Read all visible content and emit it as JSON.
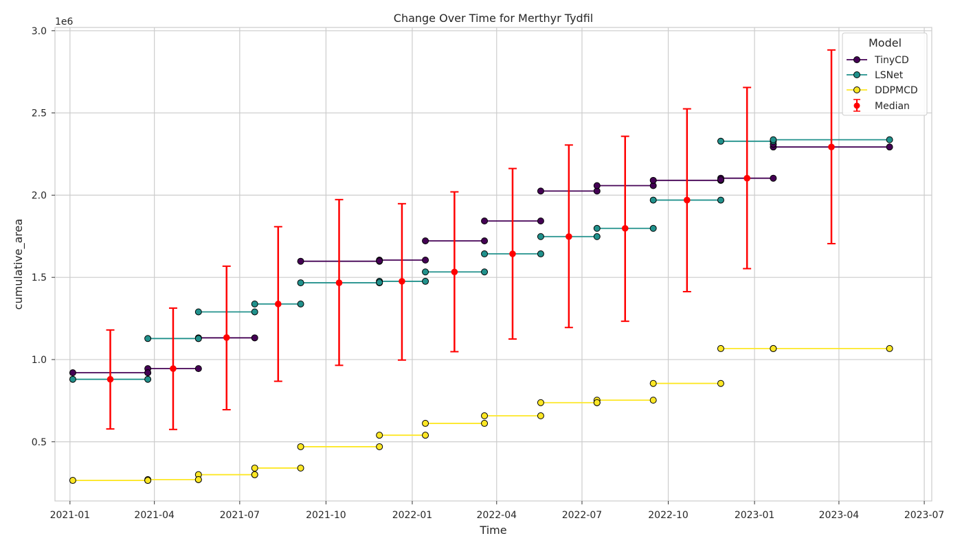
{
  "chart_data": {
    "type": "line",
    "title": "Change Over Time for Merthyr Tydfil",
    "xlabel": "Time",
    "ylabel": "cumulative_area",
    "y_offset_text": "1e6",
    "x_axis_kind": "date",
    "xlim": [
      "2020-12-16",
      "2023-07-09"
    ],
    "ylim": [
      0.14,
      3.02
    ],
    "y_units_multiplier": 1000000,
    "x_ticks": [
      "2021-01-01",
      "2021-04-01",
      "2021-07-01",
      "2021-10-01",
      "2022-01-01",
      "2022-04-01",
      "2022-07-01",
      "2022-10-01",
      "2023-01-01",
      "2023-04-01",
      "2023-07-01"
    ],
    "x_tick_labels": [
      "2021-01",
      "2021-04",
      "2021-07",
      "2021-10",
      "2022-01",
      "2022-04",
      "2022-07",
      "2022-10",
      "2023-01",
      "2023-04",
      "2023-07"
    ],
    "y_ticks": [
      0.5,
      1.0,
      1.5,
      2.0,
      2.5,
      3.0
    ],
    "y_tick_labels": [
      "0.5",
      "1.0",
      "1.5",
      "2.0",
      "2.5",
      "3.0"
    ],
    "grid": true,
    "legend": {
      "title": "Model",
      "placement": "top-right"
    },
    "series": [
      {
        "name": "TinyCD",
        "color": "#440154",
        "segments": [
          [
            [
              "2021-01-04",
              0.92
            ],
            [
              "2021-03-25",
              0.92
            ]
          ],
          [
            [
              "2021-03-25",
              0.945
            ],
            [
              "2021-05-18",
              0.945
            ]
          ],
          [
            [
              "2021-05-18",
              1.132
            ],
            [
              "2021-07-17",
              1.132
            ]
          ],
          [
            [
              "2021-09-04",
              1.598
            ],
            [
              "2021-11-27",
              1.598
            ]
          ],
          [
            [
              "2021-11-27",
              1.605
            ],
            [
              "2022-01-15",
              1.605
            ]
          ],
          [
            [
              "2022-01-15",
              1.722
            ],
            [
              "2022-03-19",
              1.722
            ]
          ],
          [
            [
              "2022-03-19",
              1.843
            ],
            [
              "2022-05-18",
              1.843
            ]
          ],
          [
            [
              "2022-05-18",
              2.025
            ],
            [
              "2022-07-17",
              2.025
            ]
          ],
          [
            [
              "2022-07-17",
              2.058
            ],
            [
              "2022-09-15",
              2.058
            ]
          ],
          [
            [
              "2022-09-15",
              2.09
            ],
            [
              "2022-11-26",
              2.09
            ]
          ],
          [
            [
              "2022-11-26",
              2.103
            ],
            [
              "2023-01-21",
              2.103
            ]
          ],
          [
            [
              "2023-01-21",
              2.293
            ],
            [
              "2023-05-25",
              2.293
            ]
          ]
        ],
        "extra_points": [
          [
            "2021-03-25",
            0.92
          ],
          [
            "2021-05-18",
            1.128
          ],
          [
            "2021-11-27",
            1.6
          ],
          [
            "2022-11-26",
            2.094
          ],
          [
            "2023-01-21",
            2.31
          ]
        ]
      },
      {
        "name": "LSNet",
        "color": "#21918c",
        "segments": [
          [
            [
              "2021-01-04",
              0.88
            ],
            [
              "2021-03-25",
              0.88
            ]
          ],
          [
            [
              "2021-03-25",
              1.128
            ],
            [
              "2021-05-18",
              1.128
            ]
          ],
          [
            [
              "2021-05-18",
              1.29
            ],
            [
              "2021-07-17",
              1.29
            ]
          ],
          [
            [
              "2021-07-17",
              1.338
            ],
            [
              "2021-09-04",
              1.338
            ]
          ],
          [
            [
              "2021-09-04",
              1.467
            ],
            [
              "2021-11-27",
              1.467
            ]
          ],
          [
            [
              "2021-11-27",
              1.476
            ],
            [
              "2022-01-15",
              1.476
            ]
          ],
          [
            [
              "2022-01-15",
              1.533
            ],
            [
              "2022-03-19",
              1.533
            ]
          ],
          [
            [
              "2022-03-19",
              1.643
            ],
            [
              "2022-05-18",
              1.643
            ]
          ],
          [
            [
              "2022-05-18",
              1.748
            ],
            [
              "2022-07-17",
              1.748
            ]
          ],
          [
            [
              "2022-07-17",
              1.798
            ],
            [
              "2022-09-15",
              1.798
            ]
          ],
          [
            [
              "2022-09-15",
              1.97
            ],
            [
              "2022-11-26",
              1.97
            ]
          ],
          [
            [
              "2022-11-26",
              2.328
            ],
            [
              "2023-01-21",
              2.328
            ]
          ],
          [
            [
              "2023-01-21",
              2.337
            ],
            [
              "2023-05-25",
              2.337
            ]
          ]
        ],
        "extra_points": [
          [
            "2021-11-27",
            1.469
          ]
        ]
      },
      {
        "name": "DDPMCD",
        "color": "#fde725",
        "segments": [
          [
            [
              "2021-01-04",
              0.265
            ],
            [
              "2021-03-25",
              0.265
            ]
          ],
          [
            [
              "2021-03-25",
              0.27
            ],
            [
              "2021-05-18",
              0.27
            ]
          ],
          [
            [
              "2021-05-18",
              0.3
            ],
            [
              "2021-07-17",
              0.3
            ]
          ],
          [
            [
              "2021-07-17",
              0.34
            ],
            [
              "2021-09-04",
              0.34
            ]
          ],
          [
            [
              "2021-09-04",
              0.47
            ],
            [
              "2021-11-27",
              0.47
            ]
          ],
          [
            [
              "2021-11-27",
              0.54
            ],
            [
              "2022-01-15",
              0.54
            ]
          ],
          [
            [
              "2022-01-15",
              0.612
            ],
            [
              "2022-03-19",
              0.612
            ]
          ],
          [
            [
              "2022-03-19",
              0.658
            ],
            [
              "2022-05-18",
              0.658
            ]
          ],
          [
            [
              "2022-05-18",
              0.738
            ],
            [
              "2022-07-17",
              0.738
            ]
          ],
          [
            [
              "2022-07-17",
              0.753
            ],
            [
              "2022-09-15",
              0.753
            ]
          ],
          [
            [
              "2022-09-15",
              0.855
            ],
            [
              "2022-11-26",
              0.855
            ]
          ],
          [
            [
              "2022-11-26",
              1.067
            ],
            [
              "2023-01-21",
              1.067
            ]
          ],
          [
            [
              "2023-01-21",
              1.067
            ],
            [
              "2023-05-25",
              1.067
            ]
          ]
        ],
        "extra_points": [
          [
            "2021-03-25",
            0.265
          ],
          [
            "2021-05-18",
            0.27
          ],
          [
            "2021-07-17",
            0.3
          ],
          [
            "2022-07-17",
            0.738
          ]
        ]
      }
    ],
    "median": {
      "name": "Median",
      "color": "#ff0000",
      "points": [
        {
          "x": "2021-02-13",
          "y": 0.88,
          "low": 0.578,
          "high": 1.18
        },
        {
          "x": "2021-04-21",
          "y": 0.945,
          "low": 0.575,
          "high": 1.313
        },
        {
          "x": "2021-06-17",
          "y": 1.134,
          "low": 0.695,
          "high": 1.568
        },
        {
          "x": "2021-08-11",
          "y": 1.338,
          "low": 0.868,
          "high": 1.808
        },
        {
          "x": "2021-10-15",
          "y": 1.467,
          "low": 0.965,
          "high": 1.973
        },
        {
          "x": "2021-12-21",
          "y": 1.476,
          "low": 0.997,
          "high": 1.948
        },
        {
          "x": "2022-02-15",
          "y": 1.533,
          "low": 1.048,
          "high": 2.02
        },
        {
          "x": "2022-04-18",
          "y": 1.643,
          "low": 1.125,
          "high": 2.162
        },
        {
          "x": "2022-06-17",
          "y": 1.748,
          "low": 1.195,
          "high": 2.305
        },
        {
          "x": "2022-08-16",
          "y": 1.798,
          "low": 1.233,
          "high": 2.358
        },
        {
          "x": "2022-10-21",
          "y": 1.97,
          "low": 1.413,
          "high": 2.525
        },
        {
          "x": "2022-12-24",
          "y": 2.103,
          "low": 1.553,
          "high": 2.655
        },
        {
          "x": "2023-03-24",
          "y": 2.293,
          "low": 1.705,
          "high": 2.883
        }
      ]
    }
  }
}
